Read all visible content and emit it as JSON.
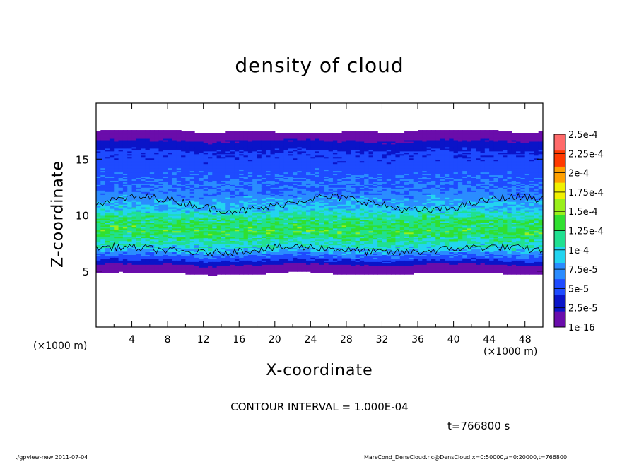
{
  "chart_data": {
    "type": "heatmap",
    "title": "density of cloud",
    "xlabel": "X-coordinate",
    "ylabel": "Z-coordinate",
    "x_unit_left": "(×1000 m)",
    "x_unit_right": "(×1000 m)",
    "xlim": [
      0,
      50
    ],
    "ylim": [
      0,
      20
    ],
    "x_ticks": [
      4,
      8,
      12,
      16,
      20,
      24,
      28,
      32,
      36,
      40,
      44,
      48
    ],
    "x_tick_labels": [
      "4",
      "8",
      "12",
      "16",
      "20",
      "24",
      "28",
      "32",
      "36",
      "40",
      "44",
      "48"
    ],
    "y_ticks": [
      5,
      10,
      15
    ],
    "y_tick_labels": [
      "5",
      "10",
      "15"
    ],
    "colorbar": {
      "labels": [
        "1e-16",
        "2.5e-5",
        "5e-5",
        "7.5e-5",
        "1e-4",
        "1.25e-4",
        "1.5e-4",
        "1.75e-4",
        "2e-4",
        "2.25e-4",
        "2.5e-4"
      ],
      "levels": [
        1e-16,
        2.5e-05,
        5e-05,
        7.5e-05,
        0.0001,
        0.000125,
        0.00015,
        0.000175,
        0.0002,
        0.000225,
        0.00025
      ],
      "colors": [
        "#6a0dab",
        "#0a14c8",
        "#1e4bff",
        "#2a8cff",
        "#22d4f0",
        "#20e090",
        "#30e030",
        "#9aef1a",
        "#f0f000",
        "#ffa000",
        "#ff3a00",
        "#ff6a6a"
      ]
    },
    "cloud_profile": [
      {
        "z": 4.8,
        "value": 1e-16
      },
      {
        "z": 5.5,
        "value": 2e-05
      },
      {
        "z": 6.2,
        "value": 6.5e-05
      },
      {
        "z": 7.0,
        "value": 0.00011
      },
      {
        "z": 8.5,
        "value": 0.000155
      },
      {
        "z": 9.5,
        "value": 0.000145
      },
      {
        "z": 10.5,
        "value": 0.00011
      },
      {
        "z": 12.0,
        "value": 8e-05
      },
      {
        "z": 14.0,
        "value": 6.5e-05
      },
      {
        "z": 15.5,
        "value": 5.5e-05
      },
      {
        "z": 16.5,
        "value": 3e-05
      },
      {
        "z": 17.5,
        "value": 1e-16
      }
    ],
    "contour_interval": "CONTOUR INTERVAL = 1.000E-04",
    "time_label": "t=766800 s"
  },
  "footer": {
    "left": "./gpview-new   2011-07-04",
    "right": "MarsCond_DensCloud.nc@DensCloud,x=0:50000,z=0:20000,t=766800"
  }
}
